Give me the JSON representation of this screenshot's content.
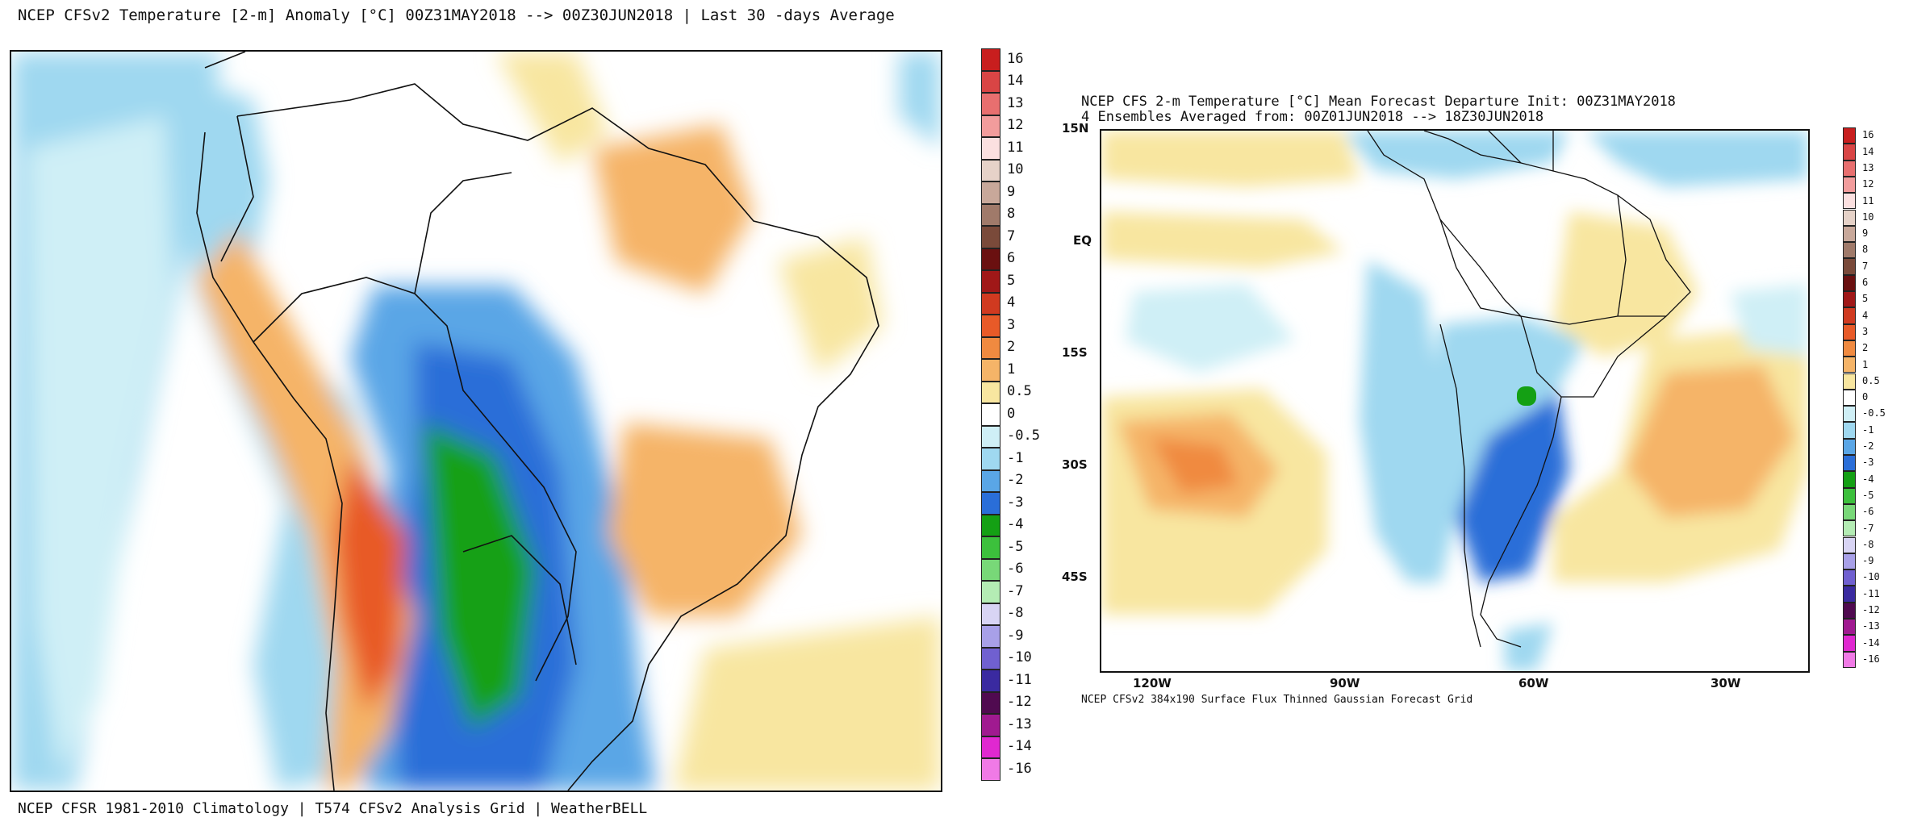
{
  "left_panel": {
    "title": "NCEP CFSv2 Temperature [2-m] Anomaly  [°C] 00Z31MAY2018 --> 00Z30JUN2018 | Last 30 -days Average",
    "footer": "NCEP CFSR 1981-2010 Climatology | T574 CFSv2 Analysis Grid | WeatherBELL",
    "colorbar_labels": [
      "16",
      "14",
      "13",
      "12",
      "11",
      "10",
      "9",
      "8",
      "7",
      "6",
      "5",
      "4",
      "3",
      "2",
      "1",
      "0.5",
      "0",
      "-0.5",
      "-1",
      "-2",
      "-3",
      "-4",
      "-5",
      "-6",
      "-7",
      "-8",
      "-9",
      "-10",
      "-11",
      "-12",
      "-13",
      "-14",
      "-16"
    ]
  },
  "right_panel": {
    "title_line1": "NCEP CFS 2-m Temperature [°C] Mean Forecast Departure Init: 00Z31MAY2018",
    "title_line2": "4 Ensembles Averaged from: 00Z01JUN2018 --> 18Z30JUN2018",
    "footer": "NCEP CFSv2 384x190 Surface Flux Thinned Gaussian Forecast Grid",
    "lat_labels": [
      "15N",
      "EQ",
      "15S",
      "30S",
      "45S"
    ],
    "lon_labels": [
      "120W",
      "90W",
      "60W",
      "30W"
    ],
    "colorbar_labels": [
      "16",
      "14",
      "13",
      "12",
      "11",
      "10",
      "9",
      "8",
      "7",
      "6",
      "5",
      "4",
      "3",
      "2",
      "1",
      "0.5",
      "0",
      "-0.5",
      "-1",
      "-2",
      "-3",
      "-4",
      "-5",
      "-6",
      "-7",
      "-8",
      "-9",
      "-10",
      "-11",
      "-12",
      "-13",
      "-14",
      "-16"
    ]
  },
  "colorbar_colors": [
    "#c81e1e",
    "#d94545",
    "#e86f6f",
    "#f29c9c",
    "#fbe0e0",
    "#e6d2c8",
    "#c8a89a",
    "#a07a6a",
    "#7a4a3a",
    "#6a1010",
    "#a01818",
    "#d03a20",
    "#e85a28",
    "#f08a40",
    "#f5b468",
    "#f8e6a0",
    "#ffffff",
    "#cfeff6",
    "#9fd8f0",
    "#5aa6e6",
    "#2a6ed8",
    "#14a014",
    "#3cc03c",
    "#78d878",
    "#b4ecb4",
    "#d8d4f4",
    "#a8a0e8",
    "#7060d0",
    "#3a2aa0",
    "#500a50",
    "#a01a90",
    "#e028d0",
    "#f07ae6"
  ]
}
